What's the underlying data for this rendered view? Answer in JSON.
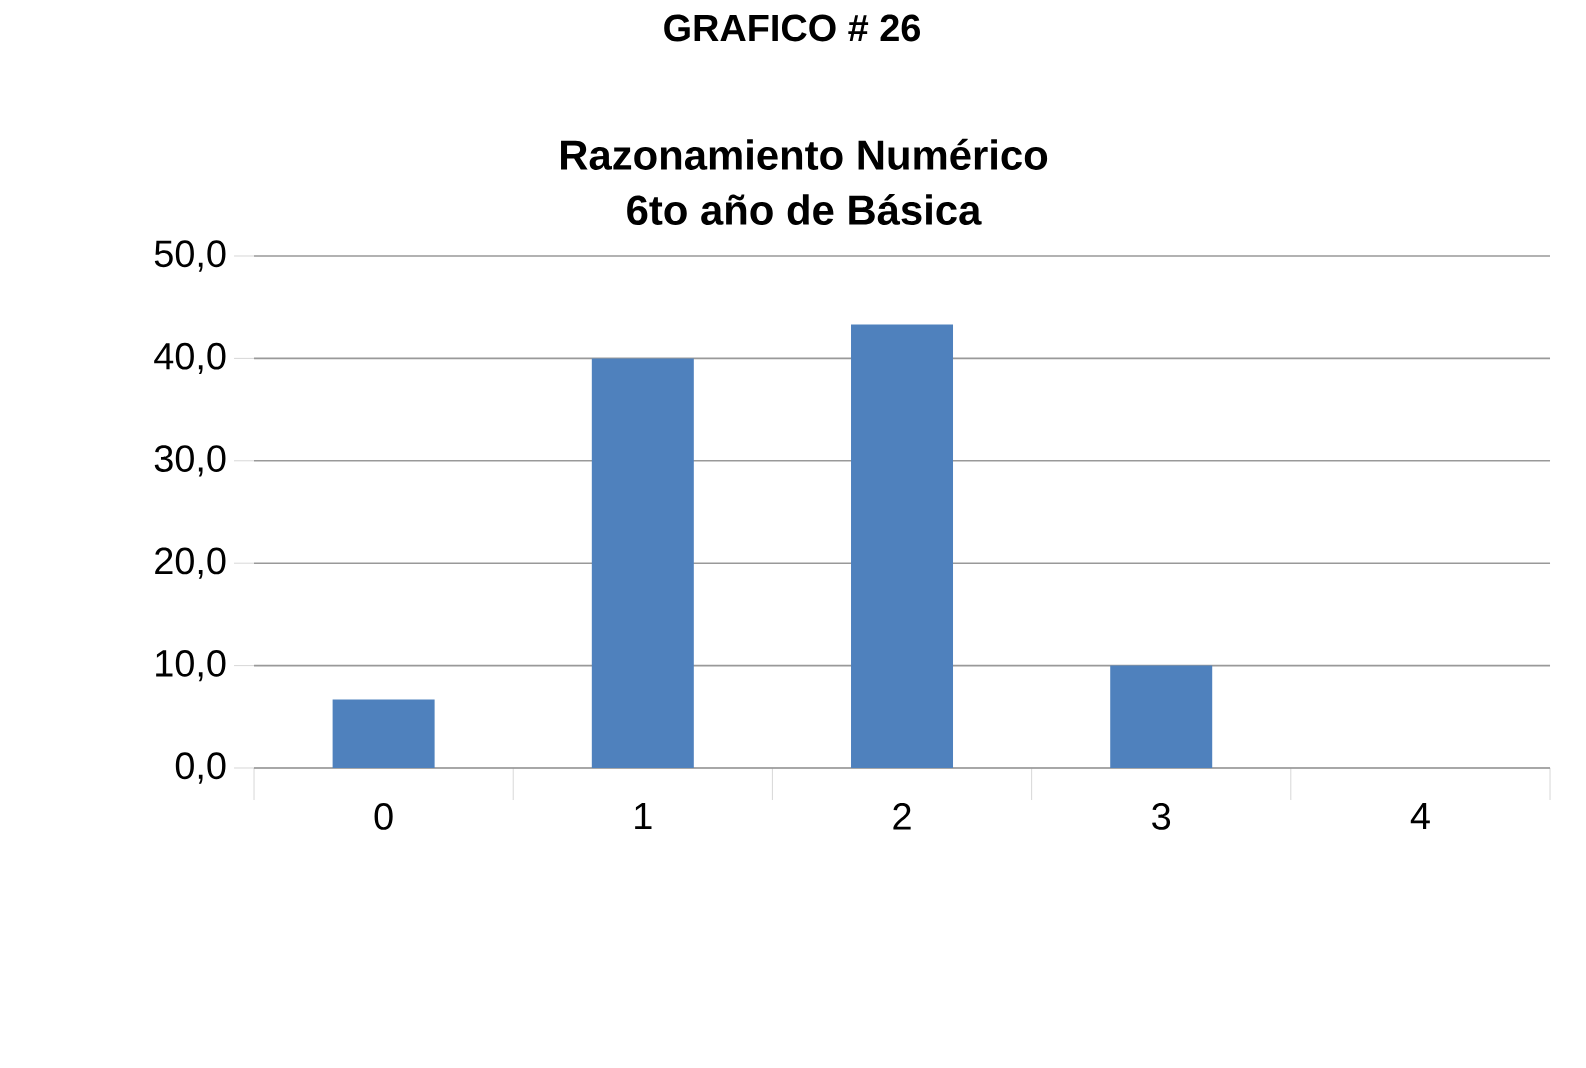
{
  "chart_data": {
    "type": "bar",
    "title": "Razonamiento Numérico",
    "subtitle": "6to año de Básica",
    "annotations": [
      "GRAFICO # 26"
    ],
    "categories": [
      "0",
      "1",
      "2",
      "3",
      "4"
    ],
    "values": [
      6.7,
      40.0,
      43.3,
      10.0,
      0.0
    ],
    "color": "#4f81bd",
    "ylim": [
      0,
      50
    ],
    "yticks": [
      {
        "value": 0,
        "label": "0,0"
      },
      {
        "value": 10,
        "label": "10,0"
      },
      {
        "value": 20,
        "label": "20,0"
      },
      {
        "value": 30,
        "label": "30,0"
      },
      {
        "value": 40,
        "label": "40,0"
      },
      {
        "value": 50,
        "label": "50,0"
      }
    ],
    "grid": "y",
    "legend": false
  }
}
